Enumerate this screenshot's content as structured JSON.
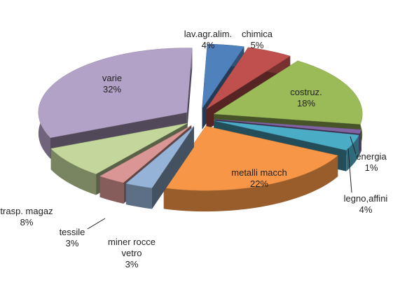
{
  "chart_data": {
    "type": "pie",
    "categories": [
      "lav.agr.alim.",
      "chimica",
      "costruz.",
      "energia",
      "legno,affini",
      "metalli macch",
      "miner rocce vetro",
      "tessile",
      "trasp.  magaz",
      "varie"
    ],
    "values": [
      4,
      5,
      18,
      1,
      4,
      22,
      3,
      3,
      8,
      32
    ],
    "value_labels": [
      "4%",
      "5%",
      "18%",
      "1%",
      "4%",
      "22%",
      "3%",
      "3%",
      "8%",
      "32%"
    ],
    "colors": [
      "#4f81bd",
      "#c0504d",
      "#9bbb59",
      "#8064a2",
      "#4bacc6",
      "#f79646",
      "#95b3d7",
      "#d99694",
      "#c3d69b",
      "#b3a2c7"
    ]
  }
}
